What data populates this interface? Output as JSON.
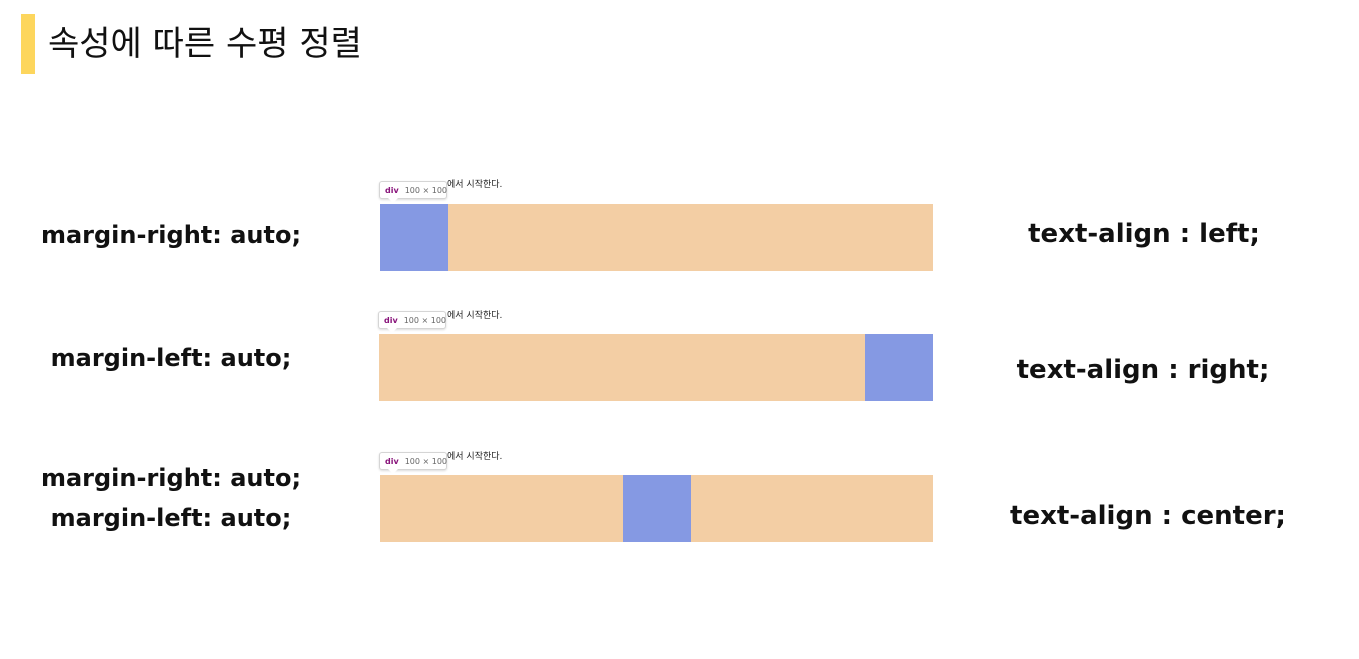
{
  "header": {
    "title": "속성에 따른 수평 정렬",
    "accent_color": "#fdd65d"
  },
  "colors": {
    "track": "#f3cea4",
    "box": "#8599e3",
    "tooltip_tag": "#88137a"
  },
  "rows": [
    {
      "left_lines": [
        "margin-right: auto;"
      ],
      "right_label": "text-align : left;",
      "caption": "에서 시작한다.",
      "tooltip_tag": "div",
      "tooltip_dim": "100 × 100"
    },
    {
      "left_lines": [
        "margin-left: auto;"
      ],
      "right_label": "text-align : right;",
      "caption": "에서 시작한다.",
      "tooltip_tag": "div",
      "tooltip_dim": "100 × 100"
    },
    {
      "left_lines": [
        "margin-right: auto;",
        "margin-left: auto;"
      ],
      "right_label": "text-align : center;",
      "caption": "에서 시작한다.",
      "tooltip_tag": "div",
      "tooltip_dim": "100 × 100"
    }
  ]
}
